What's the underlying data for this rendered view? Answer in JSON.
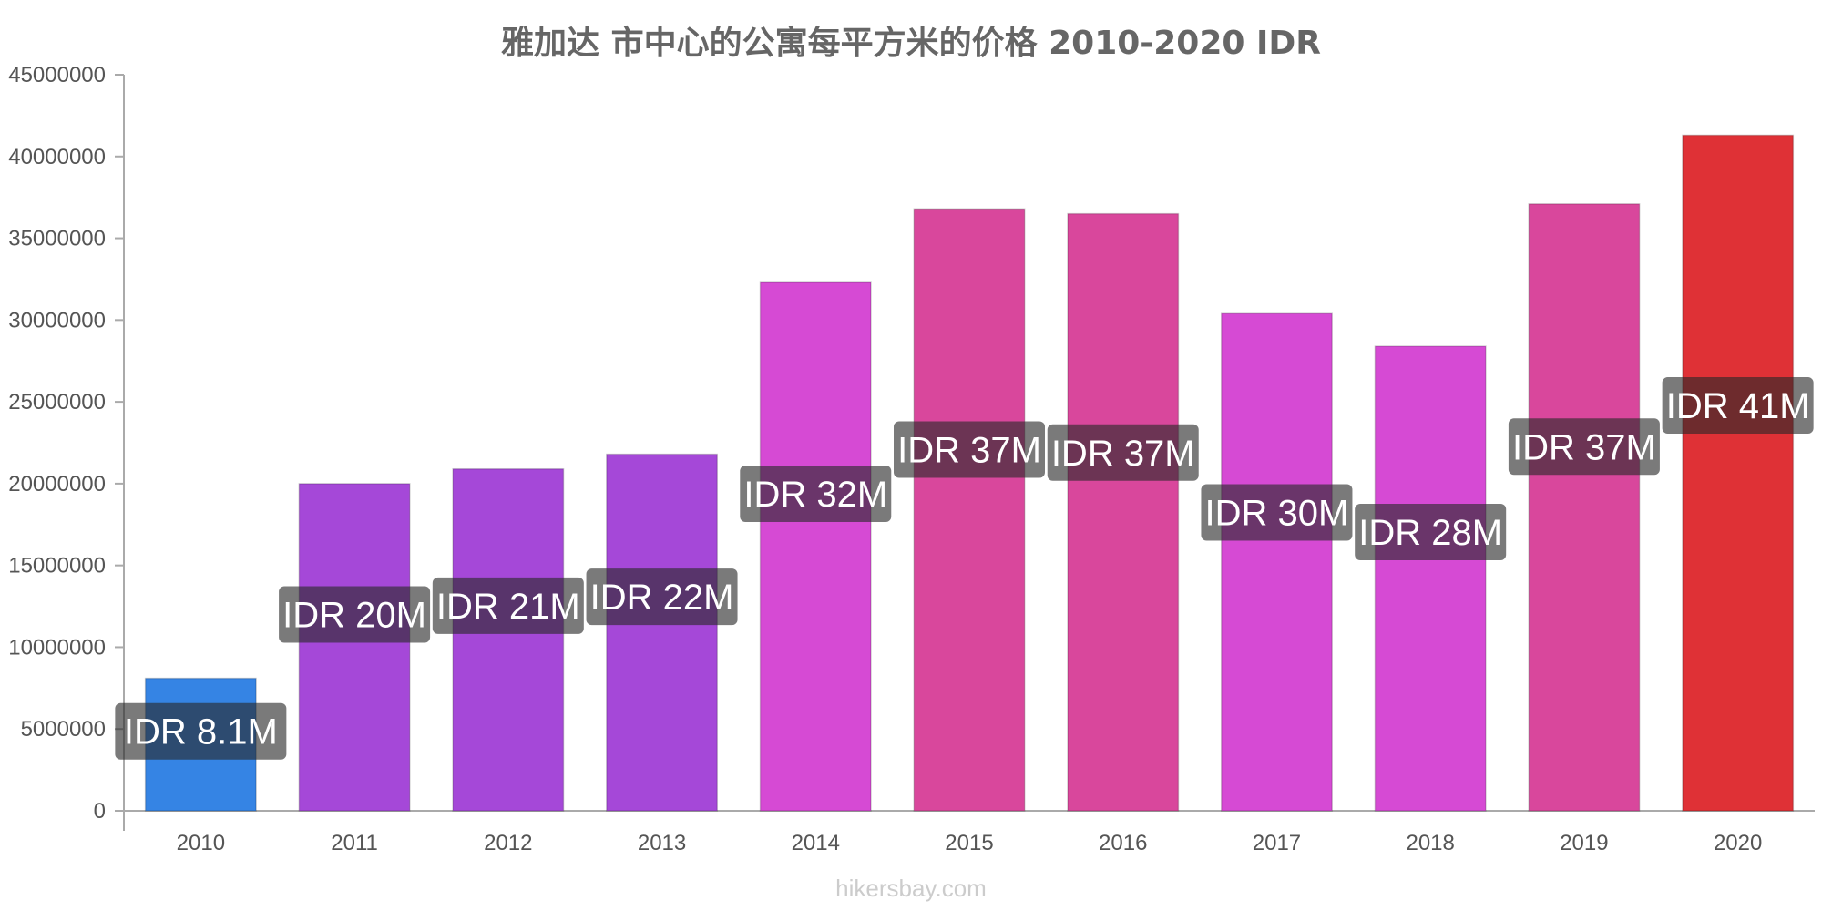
{
  "chart_data": {
    "type": "bar",
    "title": "雅加达 市中心的公寓每平方米的价格 2010-2020 IDR",
    "categories": [
      "2010",
      "2011",
      "2012",
      "2013",
      "2014",
      "2015",
      "2016",
      "2017",
      "2018",
      "2019",
      "2020"
    ],
    "values": [
      8100000,
      20000000,
      20900000,
      21800000,
      32300000,
      36800000,
      36500000,
      30400000,
      28400000,
      37100000,
      41300000
    ],
    "data_labels": [
      "IDR 8.1M",
      "IDR 20M",
      "IDR 21M",
      "IDR 22M",
      "IDR 32M",
      "IDR 37M",
      "IDR 37M",
      "IDR 30M",
      "IDR 28M",
      "IDR 37M",
      "IDR 41M"
    ],
    "bar_colors": [
      "#3584e4",
      "#a548d8",
      "#a548d8",
      "#a548d8",
      "#d64ad4",
      "#d9479c",
      "#d9479c",
      "#d64ad4",
      "#d64ad4",
      "#d9479c",
      "#df3136"
    ],
    "y_ticks": [
      "0",
      "5000000",
      "10000000",
      "15000000",
      "20000000",
      "25000000",
      "30000000",
      "35000000",
      "40000000",
      "45000000"
    ],
    "ylim": [
      0,
      45000000
    ],
    "xlabel": "",
    "ylabel": "",
    "grid": false,
    "legend": "none"
  },
  "watermark": "hikersbay.com"
}
